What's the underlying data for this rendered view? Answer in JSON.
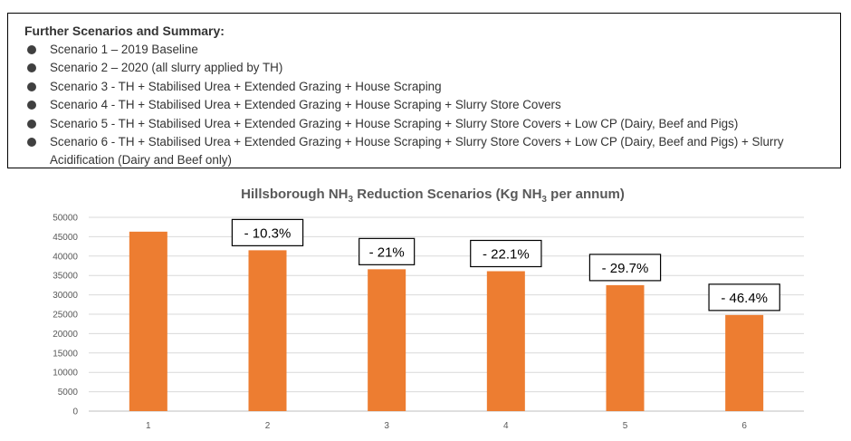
{
  "summary": {
    "heading": "Further Scenarios and Summary:",
    "items": [
      "Scenario 1 – 2019 Baseline",
      "Scenario 2 – 2020 (all slurry applied by TH)",
      "Scenario 3 - TH + Stabilised Urea + Extended Grazing + House Scraping",
      "Scenario 4 - TH + Stabilised Urea + Extended Grazing + House Scraping + Slurry Store Covers",
      "Scenario 5 - TH + Stabilised Urea + Extended Grazing + House Scraping + Slurry Store Covers + Low CP (Dairy, Beef and Pigs)",
      "Scenario 6 - TH + Stabilised Urea + Extended Grazing + House Scraping + Slurry Store Covers + Low CP (Dairy, Beef and Pigs) + Slurry Acidification (Dairy and Beef only)"
    ]
  },
  "chart_data": {
    "type": "bar",
    "title": "Hillsborough NH3 Reduction Scenarios (Kg NH3 per annum)",
    "title_parts": [
      "Hillsborough NH",
      "3",
      " Reduction Scenarios (Kg NH",
      "3",
      " per annum)"
    ],
    "categories": [
      "1",
      "2",
      "3",
      "4",
      "5",
      "6"
    ],
    "values": [
      46300,
      41500,
      36600,
      36100,
      32500,
      24800
    ],
    "annotations": [
      "",
      "- 10.3%",
      "- 21%",
      "- 22.1%",
      "- 29.7%",
      "- 46.4%"
    ],
    "ylim": [
      0,
      50000
    ],
    "yticks": [
      "0",
      "5000",
      "10000",
      "15000",
      "20000",
      "25000",
      "30000",
      "35000",
      "40000",
      "45000",
      "50000"
    ],
    "grid": true,
    "legend": "none",
    "bar_color": "#ed7d31"
  }
}
